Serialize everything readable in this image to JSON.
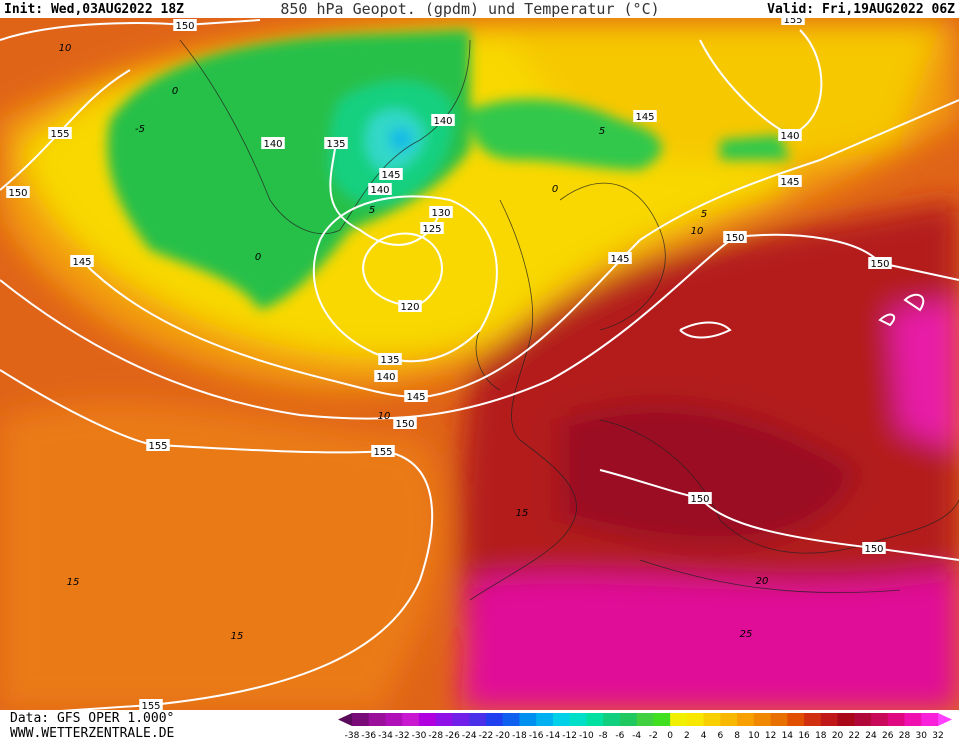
{
  "header": {
    "init": "Init: Wed,03AUG2022 18Z",
    "title": "850 hPa Geopot. (gpdm) und Temperatur (°C)",
    "valid": "Valid: Fri,19AUG2022 06Z"
  },
  "footer": {
    "source": "Data: GFS OPER 1.000°",
    "site": "WWW.WETTERZENTRALE.DE"
  },
  "colorbar": {
    "ticks": [
      -38,
      -36,
      -34,
      -32,
      -30,
      -28,
      -26,
      -24,
      -22,
      -20,
      -18,
      -16,
      -14,
      -12,
      -10,
      -8,
      -6,
      -4,
      -2,
      0,
      2,
      4,
      6,
      8,
      10,
      12,
      14,
      16,
      18,
      20,
      22,
      24,
      26,
      28,
      30,
      32
    ],
    "colors": [
      "#5a0a5a",
      "#7a0c7a",
      "#9a109a",
      "#b010b8",
      "#c818d0",
      "#b000e0",
      "#9010e8",
      "#7020e8",
      "#4a30e8",
      "#2040f0",
      "#1060f0",
      "#0090f0",
      "#00b0f0",
      "#00d0e8",
      "#00e0c8",
      "#00e0a0",
      "#10d080",
      "#20c860",
      "#40d040",
      "#40e020",
      "#f0f000",
      "#f8e800",
      "#f8d000",
      "#f8b800",
      "#f8a000",
      "#f08800",
      "#e87000",
      "#e05000",
      "#d03010",
      "#c01818",
      "#a80818",
      "#b00838",
      "#c80858",
      "#e00880",
      "#f010b0",
      "#f820d8",
      "#ff40ff"
    ]
  },
  "map": {
    "geopotential_labels": [
      150,
      155,
      150,
      140,
      135,
      145,
      140,
      140,
      145,
      140,
      145,
      130,
      125,
      150,
      150,
      145,
      145,
      120,
      135,
      140,
      145,
      150,
      155,
      155,
      150,
      150,
      155,
      155
    ],
    "temperature_labels": [
      10,
      0,
      5,
      10,
      10,
      5,
      15,
      15,
      15,
      20,
      25,
      0,
      5,
      0,
      -5
    ]
  }
}
